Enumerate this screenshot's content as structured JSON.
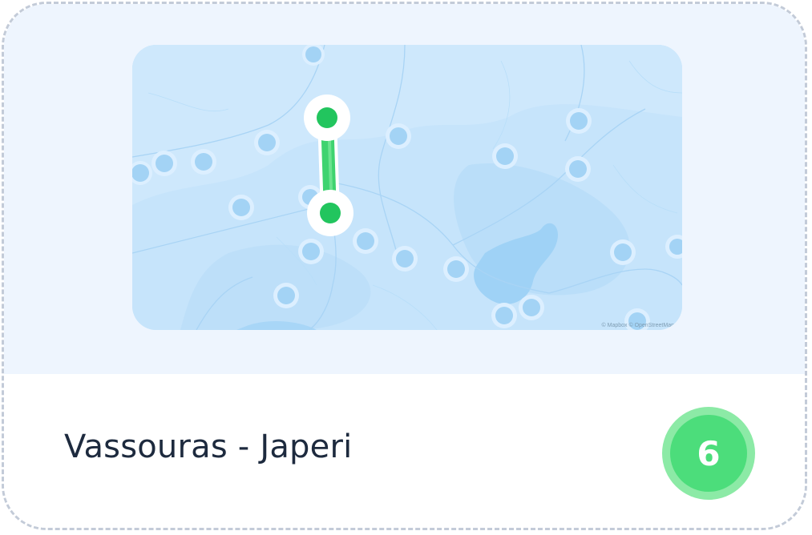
{
  "route": {
    "origin": "Vassouras",
    "separator": "-",
    "destination": "Japeri",
    "title": "Vassouras - Japeri"
  },
  "badge": {
    "count": "6"
  },
  "map": {
    "attribution": "© Mapbox © OpenStreetMap",
    "colors": {
      "background": "#c6e4fb",
      "water": "#9fd2f6",
      "stop_fill": "#a3d3f5",
      "stop_ring": "#dcefff",
      "route_line": "#3ed36f",
      "route_endpoint": "#22c55e"
    },
    "icons": [
      "stop-marker-icon",
      "route-endpoint-icon"
    ]
  }
}
